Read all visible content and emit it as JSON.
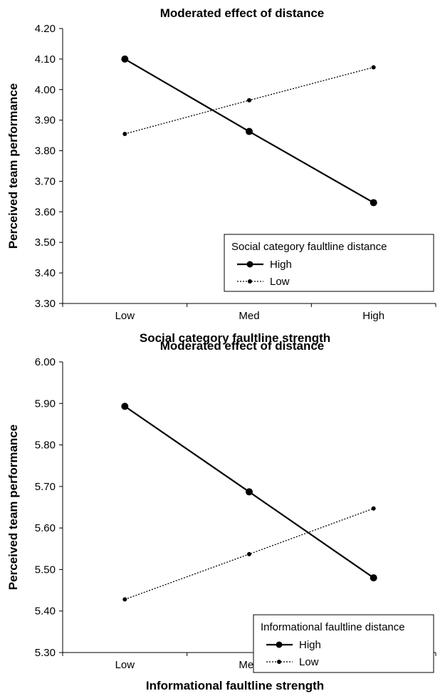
{
  "chart_data": [
    {
      "type": "line",
      "title": "Moderated effect of distance",
      "xlabel": "Social category faultline strength",
      "ylabel": "Perceived team performance",
      "categories": [
        "Low",
        "Med",
        "High"
      ],
      "ylim": [
        3.3,
        4.2
      ],
      "yticks": [
        "3.30",
        "3.40",
        "3.50",
        "3.60",
        "3.70",
        "3.80",
        "3.90",
        "4.00",
        "4.10",
        "4.20"
      ],
      "grid": false,
      "legend": {
        "title": "Social category faultline distance",
        "placement": "bottom-right"
      },
      "series": [
        {
          "name": "High",
          "values": [
            4.1,
            3.863,
            3.63
          ],
          "style": "solid"
        },
        {
          "name": "Low",
          "values": [
            3.855,
            3.965,
            4.073
          ],
          "style": "dotted"
        }
      ]
    },
    {
      "type": "line",
      "title": "Moderated effect of distance",
      "xlabel": "Informational faultline strength",
      "ylabel": "Perceived team performance",
      "categories": [
        "Low",
        "Med",
        "High"
      ],
      "ylim": [
        5.3,
        6.0
      ],
      "yticks": [
        "5.30",
        "5.40",
        "5.50",
        "5.60",
        "5.70",
        "5.80",
        "5.90",
        "6.00"
      ],
      "grid": false,
      "legend": {
        "title": "Informational faultline distance",
        "placement": "bottom-right"
      },
      "series": [
        {
          "name": "High",
          "values": [
            5.893,
            5.687,
            5.48
          ],
          "style": "solid"
        },
        {
          "name": "Low",
          "values": [
            5.428,
            5.537,
            5.647
          ],
          "style": "dotted"
        }
      ]
    }
  ],
  "colors": {
    "line": "#000000",
    "background": "#ffffff"
  }
}
